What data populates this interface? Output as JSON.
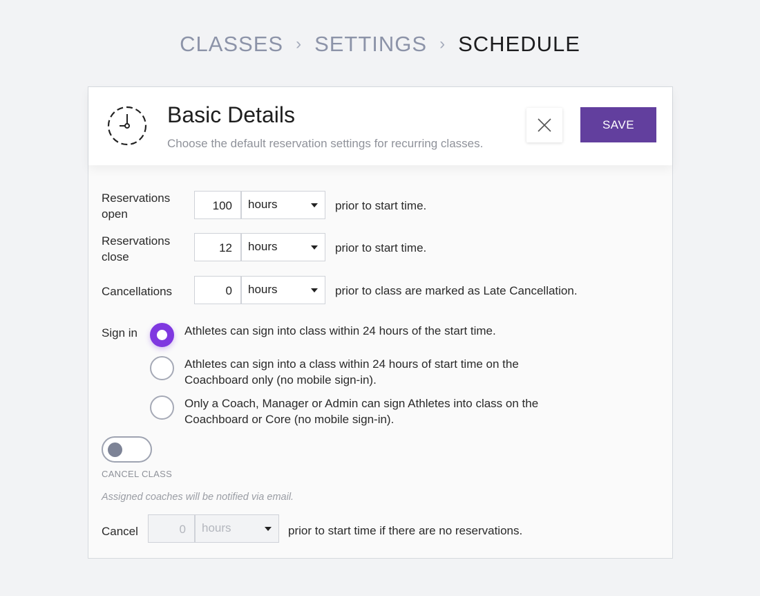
{
  "breadcrumb": [
    "CLASSES",
    "SETTINGS",
    "SCHEDULE"
  ],
  "header": {
    "icon": "clock-icon",
    "title": "Basic Details",
    "subtitle": "Choose the default reservation settings for recurring classes.",
    "save_label": "SAVE",
    "accent": "#623f9e"
  },
  "rows": [
    {
      "label": "Reservations open",
      "value": "100",
      "unit": "hours",
      "suffix": "prior to start time."
    },
    {
      "label": "Reservations close",
      "value": "12",
      "unit": "hours",
      "suffix": "prior to start time."
    },
    {
      "label": "Cancellations",
      "value": "0",
      "unit": "hours",
      "suffix": "prior to class are marked as Late Cancellation."
    }
  ],
  "sign_in": {
    "label": "Sign in",
    "selected": 0,
    "options": [
      "Athletes can sign into class within 24 hours of the start time.",
      "Athletes can sign into a class within 24 hours of start time on the Coachboard only (no mobile sign-in).",
      "Only a Coach, Manager or Admin can sign Athletes into class on the Coachboard or Core (no mobile sign-in)."
    ],
    "accent": "#7f38e0"
  },
  "cancel_class": {
    "toggle_on": false,
    "label": "CANCEL CLASS",
    "note": "Assigned coaches will be notified via email.",
    "row": {
      "label": "Cancel",
      "value": "0",
      "unit": "hours",
      "suffix": "prior to start time if there are no reservations.",
      "disabled": true
    }
  }
}
